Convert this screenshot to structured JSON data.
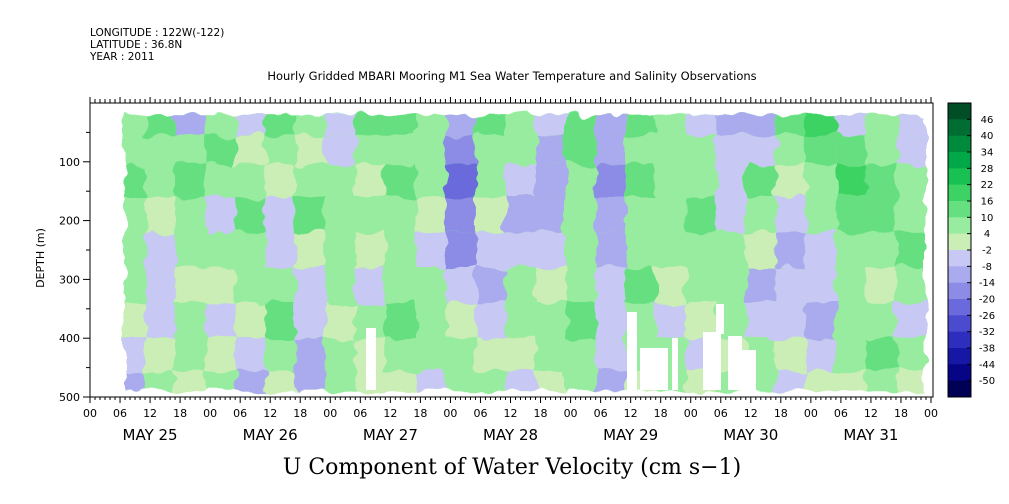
{
  "header": {
    "longitude": "LONGITUDE : 122W(-122)",
    "latitude": "LATITUDE : 36.8N",
    "year": "YEAR : 2011",
    "title": "Hourly Gridded MBARI Mooring M1 Sea Water Temperature and Salinity Observations"
  },
  "chart_data": {
    "type": "heatmap",
    "title": "Hourly Gridded MBARI Mooring M1 Sea Water Temperature and Salinity Observations",
    "variable": "U Component of Water Velocity (cm s-1)",
    "ylabel": "DEPTH (m)",
    "ylim": [
      500,
      0
    ],
    "y_axis_inverted": true,
    "y_ticks": [
      "100",
      "200",
      "300",
      "400",
      "500"
    ],
    "x_ticks": [
      "00",
      "06",
      "12",
      "18",
      "00",
      "06",
      "12",
      "18",
      "00",
      "06",
      "12",
      "18",
      "00",
      "06",
      "12",
      "18",
      "00",
      "06",
      "12",
      "18",
      "00",
      "06",
      "12",
      "18",
      "00",
      "06",
      "12",
      "18",
      "00"
    ],
    "day_labels": [
      "MAY 25",
      "MAY 26",
      "MAY 27",
      "MAY 28",
      "MAY 29",
      "MAY 30",
      "MAY 31"
    ],
    "data_depth_range_m": [
      20,
      490
    ],
    "data_start": "MAY 25 07h",
    "data_end": "MAY 31 23h",
    "colorbar": {
      "labels": [
        "46",
        "40",
        "34",
        "28",
        "22",
        "16",
        "10",
        "4",
        "-2",
        "-8",
        "-14",
        "-20",
        "-26",
        "-32",
        "-38",
        "-44",
        "-50"
      ],
      "colors": [
        "#004d26",
        "#006d32",
        "#008a3c",
        "#00a847",
        "#18c152",
        "#3dd364",
        "#66df80",
        "#98ec9f",
        "#cbeeb6",
        "#c8c8f5",
        "#aaaaee",
        "#8c8ce6",
        "#6a6adc",
        "#4b4bcf",
        "#2e2ebe",
        "#1717a6",
        "#050585",
        "#000055"
      ]
    },
    "columns": [
      {
        "day": "MAY 25",
        "hour": 8,
        "u": [
          8,
          4,
          12,
          6,
          9,
          5,
          2,
          -4,
          -10
        ]
      },
      {
        "day": "MAY 25",
        "hour": 14,
        "u": [
          10,
          6,
          8,
          2,
          -4,
          -8,
          -6,
          2,
          4
        ]
      },
      {
        "day": "MAY 25",
        "hour": 20,
        "u": [
          -12,
          6,
          10,
          8,
          4,
          -2,
          6,
          8,
          2
        ]
      },
      {
        "day": "MAY 26",
        "hour": 2,
        "u": [
          6,
          10,
          4,
          -4,
          8,
          2,
          -8,
          -2,
          6
        ]
      },
      {
        "day": "MAY 26",
        "hour": 8,
        "u": [
          -6,
          -2,
          8,
          10,
          6,
          4,
          2,
          -6,
          -10
        ]
      },
      {
        "day": "MAY 26",
        "hour": 14,
        "u": [
          12,
          8,
          -2,
          -8,
          -6,
          4,
          10,
          6,
          2
        ]
      },
      {
        "day": "MAY 26",
        "hour": 20,
        "u": [
          4,
          2,
          8,
          12,
          2,
          -4,
          -8,
          -10,
          -12
        ]
      },
      {
        "day": "MAY 27",
        "hour": 2,
        "u": [
          -8,
          -6,
          4,
          8,
          6,
          8,
          2,
          6,
          4
        ]
      },
      {
        "day": "MAY 27",
        "hour": 8,
        "u": [
          10,
          6,
          2,
          8,
          -2,
          -4,
          6,
          2,
          -2
        ]
      },
      {
        "day": "MAY 27",
        "hour": 14,
        "u": [
          14,
          8,
          10,
          6,
          8,
          4,
          10,
          6,
          2
        ]
      },
      {
        "day": "MAY 27",
        "hour": 20,
        "u": [
          4,
          8,
          4,
          -2,
          -8,
          6,
          8,
          4,
          -4
        ]
      },
      {
        "day": "MAY 28",
        "hour": 2,
        "u": [
          -14,
          -18,
          -22,
          -20,
          -16,
          -8,
          -2,
          6,
          4
        ]
      },
      {
        "day": "MAY 28",
        "hour": 8,
        "u": [
          10,
          6,
          8,
          2,
          -4,
          -10,
          -8,
          -2,
          4
        ]
      },
      {
        "day": "MAY 28",
        "hour": 14,
        "u": [
          6,
          4,
          -6,
          -12,
          -8,
          4,
          8,
          2,
          -4
        ]
      },
      {
        "day": "MAY 28",
        "hour": 20,
        "u": [
          -8,
          -10,
          -14,
          -10,
          -6,
          -2,
          4,
          6,
          -2
        ]
      },
      {
        "day": "MAY 29",
        "hour": 2,
        "u": [
          12,
          10,
          8,
          6,
          4,
          8,
          10,
          6,
          4
        ]
      },
      {
        "day": "MAY 29",
        "hour": 8,
        "u": [
          -10,
          -12,
          -16,
          -14,
          -12,
          -8,
          -6,
          -4,
          -10
        ]
      },
      {
        "day": "MAY 29",
        "hour": 14,
        "u": [
          14,
          8,
          10,
          8,
          6,
          12,
          8,
          4,
          2
        ]
      },
      {
        "day": "MAY 29",
        "hour": 20,
        "u": [
          6,
          4,
          8,
          6,
          4,
          -2,
          -6,
          8,
          6
        ]
      },
      {
        "day": "MAY 30",
        "hour": 2,
        "u": [
          -4,
          6,
          8,
          12,
          6,
          4,
          -2,
          -6,
          2
        ]
      },
      {
        "day": "MAY 30",
        "hour": 8,
        "u": [
          -10,
          -8,
          -6,
          -4,
          6,
          8,
          4,
          2,
          6
        ]
      },
      {
        "day": "MAY 30",
        "hour": 14,
        "u": [
          -14,
          -8,
          10,
          6,
          -2,
          -10,
          -8,
          6,
          4
        ]
      },
      {
        "day": "MAY 30",
        "hour": 20,
        "u": [
          12,
          8,
          -2,
          -8,
          -12,
          -8,
          -4,
          2,
          -6
        ]
      },
      {
        "day": "MAY 31",
        "hour": 2,
        "u": [
          20,
          12,
          8,
          4,
          -4,
          -8,
          -10,
          -6,
          -2
        ]
      },
      {
        "day": "MAY 31",
        "hour": 8,
        "u": [
          -6,
          12,
          16,
          10,
          8,
          4,
          6,
          8,
          2
        ]
      },
      {
        "day": "MAY 31",
        "hour": 14,
        "u": [
          6,
          8,
          12,
          10,
          6,
          2,
          8,
          10,
          6
        ]
      },
      {
        "day": "MAY 31",
        "hour": 20,
        "u": [
          -8,
          -6,
          4,
          8,
          10,
          6,
          -4,
          8,
          2
        ]
      }
    ],
    "column_depths_m": [
      30,
      80,
      130,
      190,
      250,
      310,
      370,
      430,
      480
    ]
  },
  "xlabel_big": "U Component of Water Velocity (cm s−1)"
}
